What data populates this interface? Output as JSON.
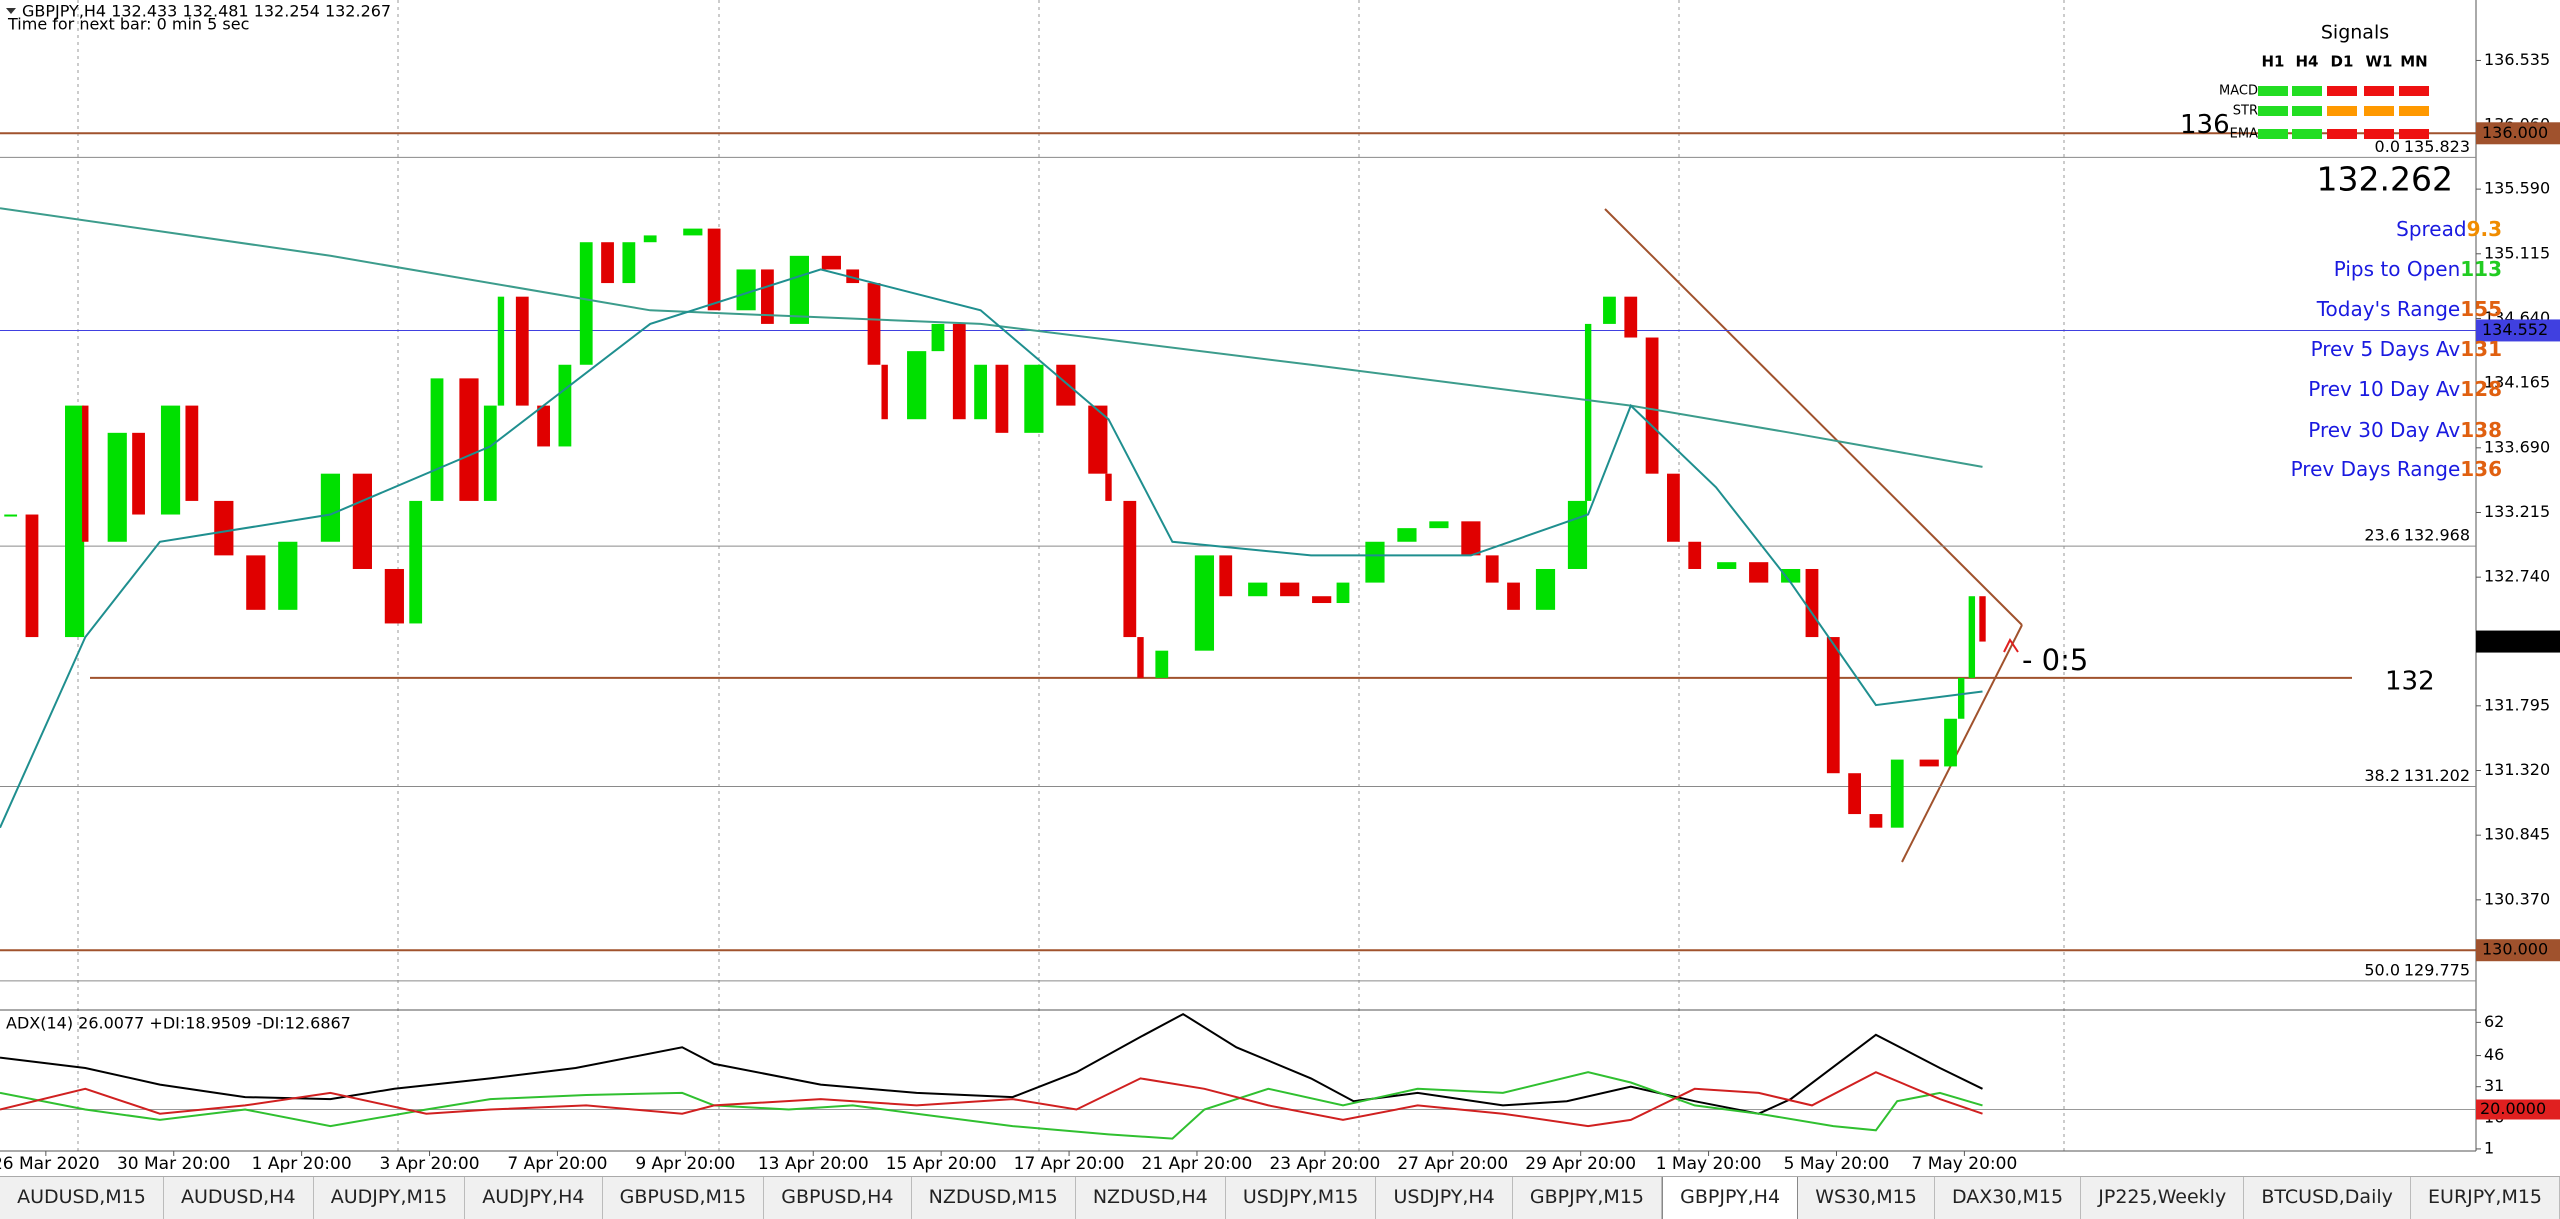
{
  "header": {
    "symbol_line": "GBPJPY,H4  132.433 132.481 132.254 132.267",
    "timer": "Time for next bar: 0 min 5 sec"
  },
  "chart_data": [
    {
      "type": "candlestick",
      "up_color": "#00e000",
      "down_color": "#e00000",
      "xlim": [
        0,
        232.3
      ],
      "ylim": [
        129.605,
        136.979
      ],
      "candles": {
        "x": [
          1,
          3,
          7,
          8,
          11,
          13,
          16,
          18,
          21,
          24,
          27,
          31,
          34,
          37,
          39,
          41,
          44,
          46,
          47,
          49,
          51,
          53,
          55,
          57,
          59,
          61,
          65,
          67,
          70,
          72,
          75,
          78,
          80,
          82,
          83,
          86,
          88,
          90,
          92,
          94,
          97,
          100,
          103,
          104,
          106,
          107,
          109,
          113,
          115,
          118,
          121,
          124,
          126,
          129,
          132,
          135,
          138,
          140,
          142,
          145,
          148,
          149,
          151,
          153,
          155,
          157,
          159,
          162,
          165,
          168,
          170,
          172,
          174,
          176,
          178,
          181,
          183,
          184,
          185,
          186
        ],
        "values": [
          133.2,
          132.3,
          134.0,
          133.0,
          133.8,
          133.2,
          134.0,
          133.3,
          132.9,
          132.5,
          133.0,
          133.5,
          132.8,
          132.4,
          133.3,
          134.2,
          133.3,
          134.0,
          134.8,
          134.0,
          133.7,
          134.3,
          135.2,
          134.9,
          135.2,
          135.25,
          135.3,
          134.7,
          135.0,
          134.6,
          135.1,
          135.0,
          134.9,
          134.3,
          133.9,
          134.4,
          134.6,
          133.9,
          134.3,
          133.8,
          134.3,
          134.0,
          133.5,
          133.3,
          132.3,
          132.0,
          132.2,
          132.9,
          132.6,
          132.7,
          132.6,
          132.55,
          132.7,
          133.0,
          133.1,
          133.15,
          132.9,
          132.7,
          132.5,
          132.8,
          133.3,
          134.6,
          134.8,
          134.5,
          133.5,
          133.0,
          132.8,
          132.85,
          132.7,
          132.8,
          132.3,
          131.3,
          131.0,
          130.9,
          131.4,
          131.35,
          131.7,
          132.0,
          132.6,
          132.267
        ]
      },
      "lines": [
        {
          "color": "#3c9c8c",
          "x": [
            0,
            31,
            61,
            92,
            123,
            153,
            168,
            186
          ],
          "values": [
            135.45,
            135.1,
            134.7,
            134.6,
            134.3,
            134.0,
            133.8,
            133.55
          ]
        },
        {
          "color": "#1f8f8f",
          "x": [
            0,
            8,
            15,
            31,
            46,
            61,
            77,
            92,
            104,
            110,
            123,
            138,
            149,
            153,
            161,
            168,
            176,
            186
          ],
          "values": [
            130.9,
            132.3,
            133.0,
            133.2,
            133.7,
            134.6,
            135.0,
            134.7,
            133.9,
            133.0,
            132.9,
            132.9,
            133.2,
            134.0,
            133.4,
            132.7,
            131.8,
            131.9
          ]
        }
      ],
      "yticks": [
        {
          "value": 136.535,
          "label": "136.535"
        },
        {
          "value": 136.06,
          "label": "136.060"
        },
        {
          "value": 135.59,
          "label": "135.590"
        },
        {
          "value": 135.115,
          "label": "135.115"
        },
        {
          "value": 134.64,
          "label": "134.640"
        },
        {
          "value": 134.165,
          "label": "134.165"
        },
        {
          "value": 133.69,
          "label": "133.690"
        },
        {
          "value": 133.215,
          "label": "133.215"
        },
        {
          "value": 132.74,
          "label": "132.740"
        },
        {
          "value": 131.795,
          "label": "131.795"
        },
        {
          "value": 131.32,
          "label": "131.320"
        },
        {
          "value": 130.845,
          "label": "130.845"
        },
        {
          "value": 130.37,
          "label": "130.370"
        }
      ],
      "xticks": [
        {
          "value": 4.3,
          "label": "26 Mar 2020"
        },
        {
          "value": 16.3,
          "label": "30 Mar 20:00"
        },
        {
          "value": 28.3,
          "label": "1 Apr 20:00"
        },
        {
          "value": 40.3,
          "label": "3 Apr 20:00"
        },
        {
          "value": 52.3,
          "label": "7 Apr 20:00"
        },
        {
          "value": 64.3,
          "label": "9 Apr 20:00"
        },
        {
          "value": 76.3,
          "label": "13 Apr 20:00"
        },
        {
          "value": 88.3,
          "label": "15 Apr 20:00"
        },
        {
          "value": 100.3,
          "label": "17 Apr 20:00"
        },
        {
          "value": 112.3,
          "label": "21 Apr 20:00"
        },
        {
          "value": 124.3,
          "label": "23 Apr 20:00"
        },
        {
          "value": 136.3,
          "label": "27 Apr 20:00"
        },
        {
          "value": 148.3,
          "label": "29 Apr 20:00"
        },
        {
          "value": 160.3,
          "label": "1 May 20:00"
        },
        {
          "value": 172.3,
          "label": "5 May 20:00"
        },
        {
          "value": 184.3,
          "label": "7 May 20:00"
        }
      ],
      "brown_levels": [
        {
          "value": 136,
          "box": "136.000",
          "tag": "136"
        },
        {
          "value": 132,
          "tag": "132"
        },
        {
          "value": 130,
          "box": "130.000"
        }
      ],
      "level_color": "#a0522d",
      "blue_level": {
        "value": 134.552,
        "color": "#4040e0"
      },
      "current_price": 132.267,
      "fib_levels": [
        {
          "level": "0.0",
          "value": 135.823
        },
        {
          "level": "23.6",
          "value": 132.968
        },
        {
          "level": "38.2",
          "value": 131.202
        },
        {
          "level": "50.0",
          "value": 129.775
        }
      ],
      "annotation": {
        "text": "- 0:5",
        "color": "#e02020"
      }
    },
    {
      "type": "line",
      "title": "ADX(14) 26.0077 +DI:18.9509 -DI:12.6867",
      "xlim": [
        0,
        232.3
      ],
      "ylim": [
        0,
        67
      ],
      "yticks": [
        62,
        46,
        31,
        16,
        1
      ],
      "level": {
        "value": 20,
        "label": "20.0000"
      },
      "lines": [
        {
          "color": "#000000",
          "x": [
            0,
            8,
            15,
            23,
            31,
            37,
            46,
            54,
            64,
            67,
            77,
            86,
            95,
            101,
            107,
            111,
            116,
            123,
            127,
            133,
            141,
            147,
            153,
            159,
            165,
            168,
            176,
            182,
            186
          ],
          "values": [
            45,
            40,
            32,
            26,
            25,
            30,
            35,
            40,
            50,
            42,
            32,
            28,
            26,
            38,
            55,
            66,
            50,
            35,
            24,
            28,
            22,
            24,
            31,
            24,
            18,
            25,
            56,
            40,
            30
          ]
        },
        {
          "color": "#30c030",
          "x": [
            0,
            8,
            15,
            23,
            31,
            40,
            46,
            55,
            64,
            67,
            74,
            80,
            86,
            95,
            104,
            110,
            113,
            119,
            126,
            133,
            141,
            149,
            153,
            159,
            165,
            172,
            176,
            178,
            182,
            186
          ],
          "values": [
            28,
            20,
            15,
            20,
            12,
            20,
            25,
            27,
            28,
            22,
            20,
            22,
            18,
            12,
            8,
            6,
            20,
            30,
            22,
            30,
            28,
            38,
            33,
            22,
            18,
            12,
            10,
            24,
            28,
            22
          ]
        },
        {
          "color": "#d02020",
          "x": [
            0,
            8,
            15,
            23,
            31,
            40,
            46,
            55,
            64,
            67,
            77,
            86,
            95,
            101,
            107,
            113,
            119,
            126,
            133,
            141,
            149,
            153,
            159,
            165,
            170,
            176,
            182,
            186
          ],
          "values": [
            20,
            30,
            18,
            22,
            28,
            18,
            20,
            22,
            18,
            22,
            25,
            22,
            25,
            20,
            35,
            30,
            22,
            15,
            22,
            18,
            12,
            15,
            30,
            28,
            22,
            38,
            25,
            18
          ]
        }
      ]
    }
  ],
  "signals": {
    "title": "Signals",
    "columns": [
      "H1",
      "H4",
      "D1",
      "W1",
      "MN"
    ],
    "rows": [
      {
        "label": "MACD",
        "colors": [
          "#22dd22",
          "#22dd22",
          "#ee1111",
          "#ee1111",
          "#ee1111"
        ]
      },
      {
        "label": "STR",
        "colors": [
          "#22dd22",
          "#22dd22",
          "#ff9900",
          "#ff9900",
          "#ff9900"
        ]
      },
      {
        "label": "EMA",
        "colors": [
          "#22dd22",
          "#22dd22",
          "#ee1111",
          "#ee1111",
          "#ee1111"
        ]
      }
    ]
  },
  "info": {
    "price": 132.262,
    "stats": [
      {
        "label": "Spread",
        "value": 9.3,
        "color": "#f08c00"
      },
      {
        "label": "Pips to Open",
        "value": 113,
        "color": "#22cc22"
      },
      {
        "label": "Today's Range",
        "value": 155,
        "color": "#e06010"
      },
      {
        "label": "Prev 5 Days Av",
        "value": 131,
        "color": "#e06010"
      },
      {
        "label": "Prev 10 Day Av",
        "value": 128,
        "color": "#e06010"
      },
      {
        "label": "Prev 30 Day Av",
        "value": 138,
        "color": "#e06010"
      },
      {
        "label": "Prev Days Range",
        "value": 136,
        "color": "#e06010"
      }
    ]
  },
  "tabs": {
    "items": [
      "AUDUSD,M15",
      "AUDUSD,H4",
      "AUDJPY,M15",
      "AUDJPY,H4",
      "GBPUSD,M15",
      "GBPUSD,H4",
      "NZDUSD,M15",
      "NZDUSD,H4",
      "USDJPY,M15",
      "USDJPY,H4",
      "GBPJPY,M15",
      "GBPJPY,H4",
      "WS30,M15",
      "DAX30,M15",
      "JP225,Weekly",
      "BTCUSD,Daily",
      "EURJPY,M15"
    ],
    "active": 11
  }
}
